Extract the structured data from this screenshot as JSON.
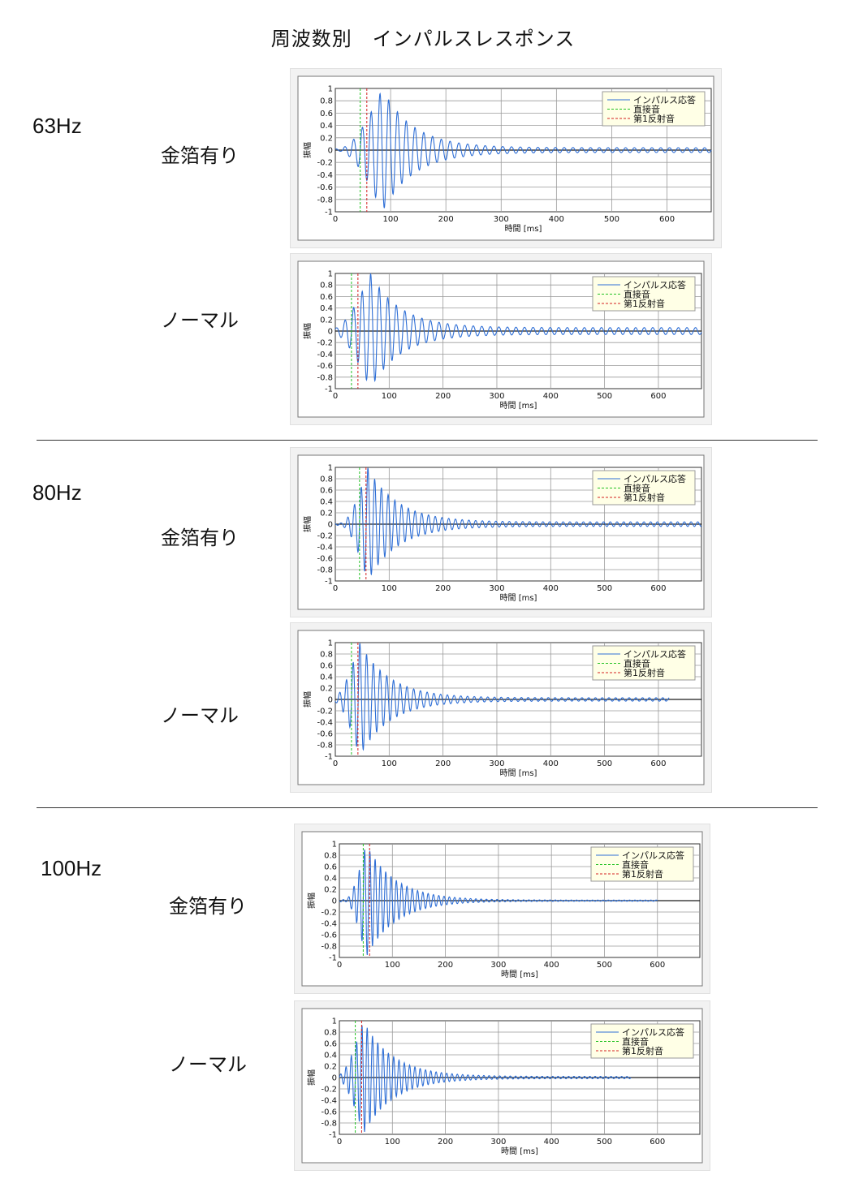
{
  "page": {
    "title": "周波数別　インパルスレスポンス"
  },
  "groups": [
    {
      "frequency": "63Hz",
      "conditions": [
        "金箔有り",
        "ノーマル"
      ]
    },
    {
      "frequency": "80Hz",
      "conditions": [
        "金箔有り",
        "ノーマル"
      ]
    },
    {
      "frequency": "100Hz",
      "conditions": [
        "金箔有り",
        "ノーマル"
      ]
    }
  ],
  "axis": {
    "xlabel": "時間 [ms]",
    "ylabel": "振幅",
    "xticks": [
      "0",
      "100",
      "200",
      "300",
      "400",
      "500",
      "600"
    ],
    "yticks": [
      "1",
      "0.8",
      "0.6",
      "0.4",
      "0.2",
      "0",
      "-0.2",
      "-0.4",
      "-0.6",
      "-0.8",
      "-1"
    ]
  },
  "legend": [
    "インパルス応答",
    "直接音",
    "第1反射音"
  ],
  "colors": {
    "response": "#2f6fd6",
    "direct": "#22c222",
    "reflection": "#d42020"
  },
  "chart_data": [
    {
      "type": "line",
      "frequency": "63Hz",
      "condition": "金箔有り",
      "freq_hz": 63,
      "xlim": [
        0,
        680
      ],
      "ylim": [
        -1,
        1
      ],
      "grid": true,
      "legend_position": "top-right",
      "direct_ms": 45,
      "reflection_ms": 57,
      "peak_ms": 85,
      "tail_amplitude": 0.04,
      "end_ms": 680,
      "series": [
        {
          "name": "インパルス応答"
        },
        {
          "name": "直接音"
        },
        {
          "name": "第1反射音"
        }
      ]
    },
    {
      "type": "line",
      "frequency": "63Hz",
      "condition": "ノーマル",
      "freq_hz": 63,
      "xlim": [
        0,
        680
      ],
      "ylim": [
        -1,
        1
      ],
      "grid": true,
      "legend_position": "top-right",
      "direct_ms": 30,
      "reflection_ms": 42,
      "peak_ms": 65,
      "tail_amplitude": 0.06,
      "end_ms": 680,
      "series": [
        {
          "name": "インパルス応答"
        },
        {
          "name": "直接音"
        },
        {
          "name": "第1反射音"
        }
      ]
    },
    {
      "type": "line",
      "frequency": "80Hz",
      "condition": "金箔有り",
      "freq_hz": 80,
      "xlim": [
        0,
        680
      ],
      "ylim": [
        -1,
        1
      ],
      "grid": true,
      "legend_position": "top-right",
      "direct_ms": 45,
      "reflection_ms": 57,
      "peak_ms": 60,
      "tail_amplitude": 0.04,
      "end_ms": 680,
      "series": [
        {
          "name": "インパルス応答"
        },
        {
          "name": "直接音"
        },
        {
          "name": "第1反射音"
        }
      ]
    },
    {
      "type": "line",
      "frequency": "80Hz",
      "condition": "ノーマル",
      "freq_hz": 80,
      "xlim": [
        0,
        680
      ],
      "ylim": [
        -1,
        1
      ],
      "grid": true,
      "legend_position": "top-right",
      "direct_ms": 30,
      "reflection_ms": 42,
      "peak_ms": 45,
      "tail_amplitude": 0.03,
      "end_ms": 620,
      "series": [
        {
          "name": "インパルス応答"
        },
        {
          "name": "直接音"
        },
        {
          "name": "第1反射音"
        }
      ]
    },
    {
      "type": "line",
      "frequency": "100Hz",
      "condition": "金箔有り",
      "freq_hz": 100,
      "xlim": [
        0,
        680
      ],
      "ylim": [
        -1,
        1
      ],
      "grid": true,
      "legend_position": "top-right",
      "direct_ms": 45,
      "reflection_ms": 57,
      "peak_ms": 50,
      "tail_amplitude": 0.01,
      "end_ms": 600,
      "series": [
        {
          "name": "インパルス応答"
        },
        {
          "name": "直接音"
        },
        {
          "name": "第1反射音"
        }
      ]
    },
    {
      "type": "line",
      "frequency": "100Hz",
      "condition": "ノーマル",
      "freq_hz": 100,
      "xlim": [
        0,
        680
      ],
      "ylim": [
        -1,
        1
      ],
      "grid": true,
      "legend_position": "top-right",
      "direct_ms": 30,
      "reflection_ms": 42,
      "peak_ms": 45,
      "tail_amplitude": 0.02,
      "end_ms": 550,
      "series": [
        {
          "name": "インパルス応答"
        },
        {
          "name": "直接音"
        },
        {
          "name": "第1反射音"
        }
      ]
    }
  ]
}
